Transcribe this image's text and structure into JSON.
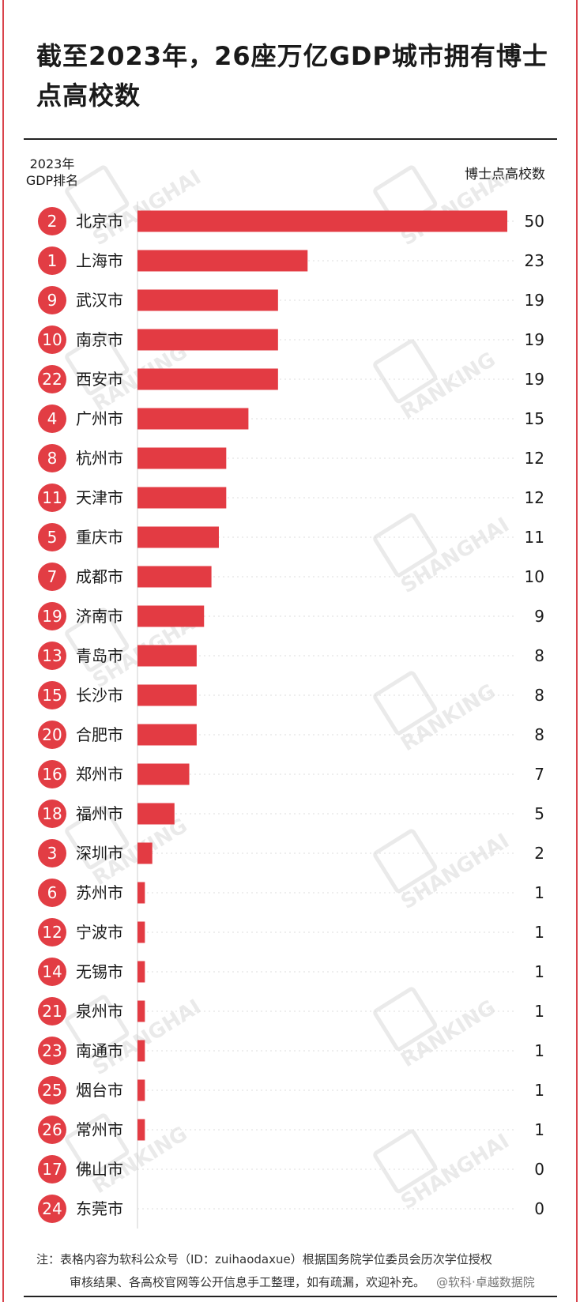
{
  "title": "截至2023年，26座万亿GDP城市拥有博士点高校数",
  "headers": {
    "rank_line1": "2023年",
    "rank_line2": "GDP排名",
    "value": "博士点高校数"
  },
  "colors": {
    "bar": "#e33b43",
    "badge": "#e23d44",
    "frame": "#d9434b",
    "text": "#1a1a1a"
  },
  "chart_data": {
    "type": "bar",
    "orientation": "horizontal",
    "title": "截至2023年，26座万亿GDP城市拥有博士点高校数",
    "xlabel": "",
    "ylabel": "",
    "value_label": "博士点高校数",
    "rank_label": "2023年GDP排名",
    "xlim": [
      0,
      50
    ],
    "grid": false,
    "rows": [
      {
        "rank": "2",
        "city": "北京市",
        "value": 50
      },
      {
        "rank": "1",
        "city": "上海市",
        "value": 23
      },
      {
        "rank": "9",
        "city": "武汉市",
        "value": 19
      },
      {
        "rank": "10",
        "city": "南京市",
        "value": 19
      },
      {
        "rank": "22",
        "city": "西安市",
        "value": 19
      },
      {
        "rank": "4",
        "city": "广州市",
        "value": 15
      },
      {
        "rank": "8",
        "city": "杭州市",
        "value": 12
      },
      {
        "rank": "11",
        "city": "天津市",
        "value": 12
      },
      {
        "rank": "5",
        "city": "重庆市",
        "value": 11
      },
      {
        "rank": "7",
        "city": "成都市",
        "value": 10
      },
      {
        "rank": "19",
        "city": "济南市",
        "value": 9
      },
      {
        "rank": "13",
        "city": "青岛市",
        "value": 8
      },
      {
        "rank": "15",
        "city": "长沙市",
        "value": 8
      },
      {
        "rank": "20",
        "city": "合肥市",
        "value": 8
      },
      {
        "rank": "16",
        "city": "郑州市",
        "value": 7
      },
      {
        "rank": "18",
        "city": "福州市",
        "value": 5
      },
      {
        "rank": "3",
        "city": "深圳市",
        "value": 2
      },
      {
        "rank": "6",
        "city": "苏州市",
        "value": 1
      },
      {
        "rank": "12",
        "city": "宁波市",
        "value": 1
      },
      {
        "rank": "14",
        "city": "无锡市",
        "value": 1
      },
      {
        "rank": "21",
        "city": "泉州市",
        "value": 1
      },
      {
        "rank": "23",
        "city": "南通市",
        "value": 1
      },
      {
        "rank": "25",
        "city": "烟台市",
        "value": 1
      },
      {
        "rank": "26",
        "city": "常州市",
        "value": 1
      },
      {
        "rank": "17",
        "city": "佛山市",
        "value": 0
      },
      {
        "rank": "24",
        "city": "东莞市",
        "value": 0
      }
    ]
  },
  "watermark": {
    "line1": "SHANGHAI",
    "line2": "RANKING"
  },
  "note": {
    "line1": "注：表格内容为软科公众号（ID：zuihaodaxue）根据国务院学位委员会历次学位授权",
    "line2": "审核结果、各高校官网等公开信息手工整理，如有疏漏，欢迎补充。",
    "credit": "@软科·卓越数据院"
  }
}
